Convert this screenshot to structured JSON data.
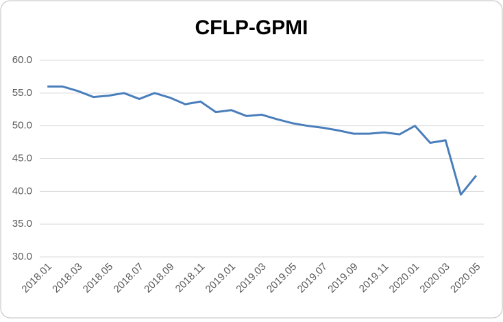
{
  "chart_data": {
    "type": "line",
    "title": "CFLP-GPMI",
    "categories": [
      "2018.01",
      null,
      "2018.03",
      null,
      "2018.05",
      null,
      "2018.07",
      null,
      "2018.09",
      null,
      "2018.11",
      null,
      "2019.01",
      null,
      "2019.03",
      null,
      "2019.05",
      null,
      "2019.07",
      null,
      "2019.09",
      null,
      "2019.11",
      null,
      "2020.01",
      null,
      "2020.03",
      null,
      "2020.05"
    ],
    "series": [
      {
        "color": "#4a7ebb",
        "values": [
          56.0,
          56.0,
          55.3,
          54.4,
          54.6,
          55.0,
          54.1,
          55.0,
          54.3,
          53.3,
          53.7,
          52.1,
          52.4,
          51.5,
          51.7,
          51.0,
          50.4,
          50.0,
          49.7,
          49.3,
          48.8,
          48.8,
          49.0,
          48.7,
          50.0,
          47.4,
          47.8,
          39.5,
          42.4
        ]
      }
    ],
    "ylim": [
      30,
      60
    ],
    "yticks": [
      {
        "value": 30,
        "label": "30.0"
      },
      {
        "value": 35,
        "label": "35.0"
      },
      {
        "value": 40,
        "label": "40.0"
      },
      {
        "value": 45,
        "label": "45.0"
      },
      {
        "value": 50,
        "label": "50.0"
      },
      {
        "value": 55,
        "label": "55.0"
      },
      {
        "value": 60,
        "label": "60.0"
      }
    ],
    "grid": true
  }
}
